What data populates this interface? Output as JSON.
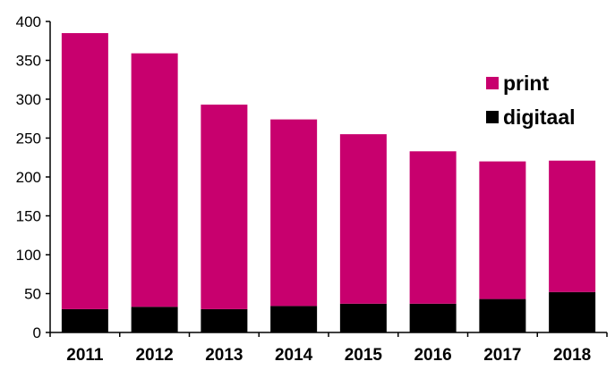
{
  "chart_data": {
    "type": "bar",
    "stacked": true,
    "categories": [
      "2011",
      "2012",
      "2013",
      "2014",
      "2015",
      "2016",
      "2017",
      "2018"
    ],
    "series": [
      {
        "name": "digitaal",
        "color": "#000000",
        "values": [
          30,
          33,
          30,
          34,
          37,
          37,
          43,
          52
        ]
      },
      {
        "name": "print",
        "color": "#c8006e",
        "values": [
          355,
          326,
          263,
          240,
          218,
          196,
          177,
          169
        ]
      }
    ],
    "totals": [
      385,
      359,
      293,
      274,
      255,
      233,
      220,
      221
    ],
    "ylim": [
      0,
      400
    ],
    "yticks": [
      0,
      50,
      100,
      150,
      200,
      250,
      300,
      350,
      400
    ],
    "grid": false,
    "legend": {
      "position": "right",
      "entries": [
        {
          "label": "print",
          "color": "#c8006e"
        },
        {
          "label": "digitaal",
          "color": "#000000"
        }
      ]
    },
    "title": "",
    "xlabel": "",
    "ylabel": ""
  }
}
